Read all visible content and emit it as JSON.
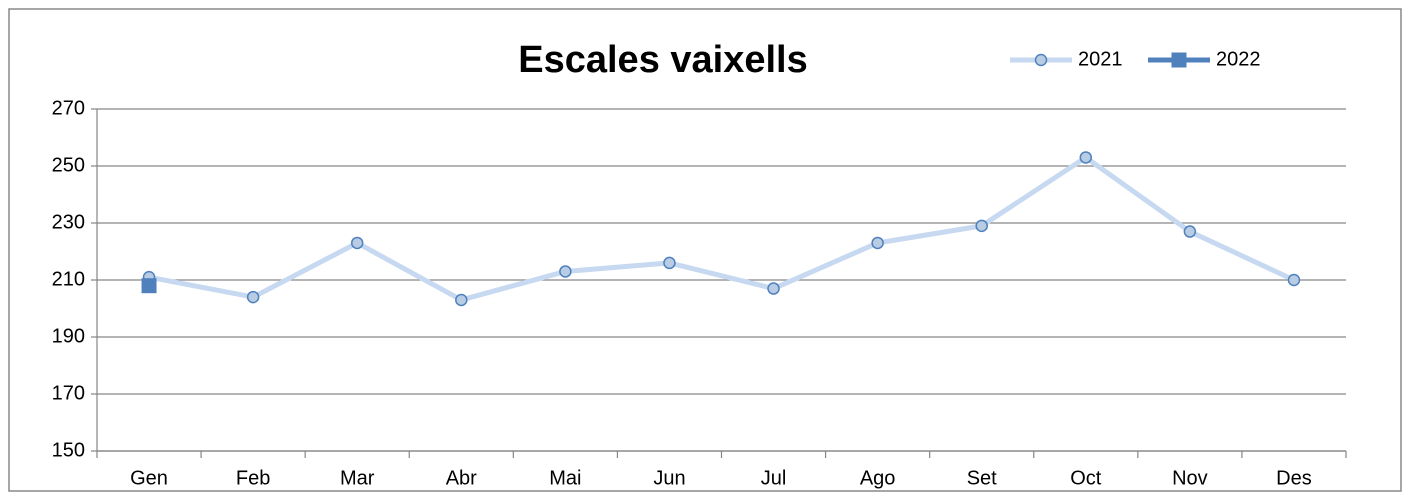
{
  "chart_data": {
    "type": "line",
    "title": "Escales vaixells",
    "categories": [
      "Gen",
      "Feb",
      "Mar",
      "Abr",
      "Mai",
      "Jun",
      "Jul",
      "Ago",
      "Set",
      "Oct",
      "Nov",
      "Des"
    ],
    "series": [
      {
        "name": "2021",
        "color": "#c6d9f1",
        "marker": "circle",
        "values": [
          211,
          204,
          223,
          203,
          213,
          216,
          207,
          223,
          229,
          253,
          227,
          210
        ]
      },
      {
        "name": "2022",
        "color": "#4f81bd",
        "marker": "square",
        "values": [
          208,
          null,
          null,
          null,
          null,
          null,
          null,
          null,
          null,
          null,
          null,
          null
        ]
      }
    ],
    "ylim": [
      150,
      270
    ],
    "yticks": [
      150,
      170,
      190,
      210,
      230,
      250,
      270
    ],
    "grid": true,
    "legend": "top-right"
  }
}
